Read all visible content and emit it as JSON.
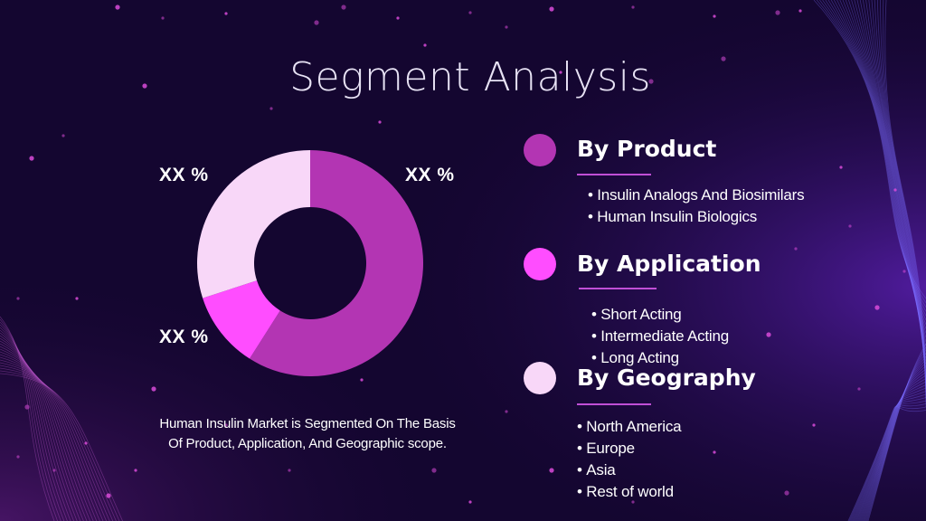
{
  "title": "Segment Analysis",
  "colors": {
    "background": "#140630",
    "product": "#b335b3",
    "application": "#ff4dff",
    "geography": "#f8d7f8",
    "underline": "#c04fd6"
  },
  "chart_data": {
    "type": "pie",
    "subtype": "donut",
    "slice_labels": [
      "XX %",
      "XX %",
      "XX %"
    ],
    "slices": [
      {
        "value": 59,
        "color": "#b335b3"
      },
      {
        "value": 11,
        "color": "#ff4dff"
      },
      {
        "value": 30,
        "color": "#f8d7f8"
      }
    ]
  },
  "caption": {
    "line1": "Human Insulin Market is Segmented On The Basis",
    "line2": "Of Product, Application, And Geographic scope."
  },
  "segments": [
    {
      "heading": "By Product",
      "items": [
        "Insulin Analogs And Biosimilars",
        "Human Insulin Biologics"
      ]
    },
    {
      "heading": "By Application",
      "items": [
        "Short Acting",
        "Intermediate Acting",
        "Long Acting"
      ]
    },
    {
      "heading": "By Geography",
      "items": [
        "North America",
        "Europe",
        "Asia",
        "Rest of world"
      ]
    }
  ]
}
